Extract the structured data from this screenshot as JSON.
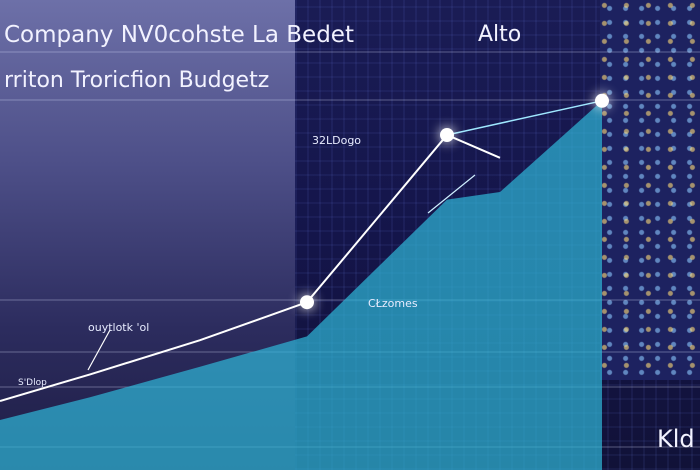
{
  "header": {
    "title_line1": "Company NV0cohste La Bedet",
    "title_line2": "rriton Troricfion Budgetz",
    "top_right": "Alto"
  },
  "annotations": {
    "peak_label": "32LDogo",
    "mid_label": "CŁzomes",
    "arrow_label": "ouytlotk 'ol",
    "start_label": "S'Dlop",
    "corner_label": "Kld"
  },
  "colors": {
    "line": "#ffffff",
    "area": "#2fb8d8",
    "background": "#4d4f88",
    "building": "#14154a"
  },
  "chart_data": {
    "type": "line",
    "title": "Company NV0cohste La Bedet rriton Troricfion Budgetz",
    "xlabel": "",
    "ylabel": "",
    "grid": true,
    "series": [
      {
        "values": [
          [
            0,
            5
          ],
          [
            1,
            12
          ],
          [
            2,
            21
          ],
          [
            3,
            31
          ],
          [
            4,
            75
          ],
          [
            5,
            69
          ],
          [
            6,
            84
          ]
        ],
        "markers": [
          3,
          4,
          6
        ]
      },
      {
        "type": "area",
        "values": [
          [
            0,
            0
          ],
          [
            1,
            6
          ],
          [
            2,
            14
          ],
          [
            3,
            22
          ],
          [
            4,
            58
          ],
          [
            5,
            60
          ],
          [
            6,
            84
          ]
        ]
      }
    ]
  }
}
